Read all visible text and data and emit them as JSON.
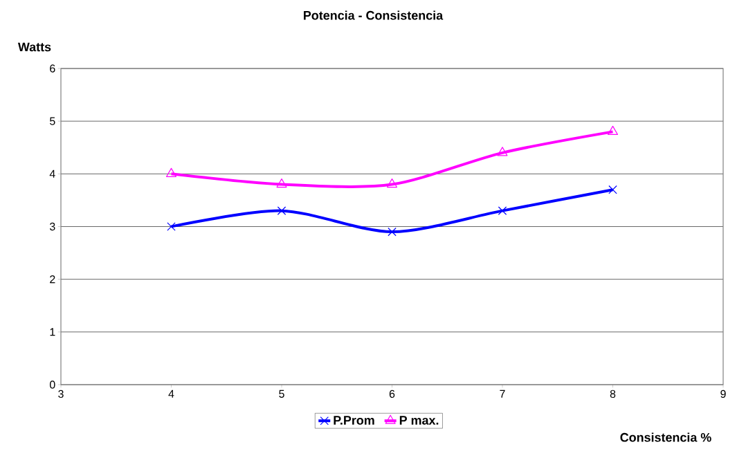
{
  "chart_data": {
    "type": "line",
    "title": "Potencia - Consistencia",
    "xlabel": "Consistencia %",
    "ylabel": "Watts",
    "x": [
      4,
      5,
      6,
      7,
      8
    ],
    "series": [
      {
        "name": "P.Prom",
        "color": "#0000ff",
        "marker": "cross",
        "values": [
          3.0,
          3.3,
          2.9,
          3.3,
          3.7
        ]
      },
      {
        "name": "P max.",
        "color": "#ff00ff",
        "marker": "triangle",
        "values": [
          4.0,
          3.8,
          3.8,
          4.4,
          4.8
        ]
      }
    ],
    "xlim": [
      3,
      9
    ],
    "xticks": [
      3,
      4,
      5,
      6,
      7,
      8,
      9
    ],
    "ylim": [
      0,
      6
    ],
    "yticks": [
      0,
      1,
      2,
      3,
      4,
      5,
      6
    ],
    "grid": "y",
    "legend": "bottom"
  }
}
